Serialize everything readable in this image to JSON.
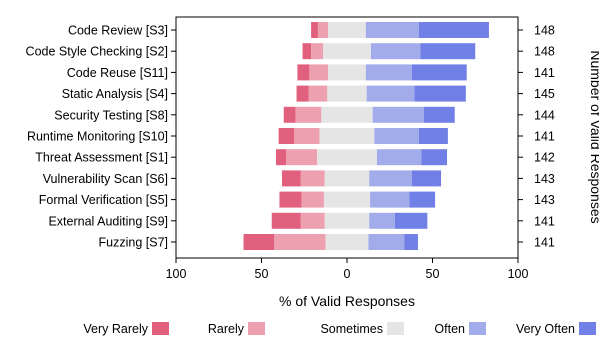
{
  "chart_data": {
    "type": "bar",
    "orientation": "horizontal",
    "stacking": "diverging",
    "categories": [
      "Code Review [S3]",
      "Code Style Checking [S2]",
      "Code Reuse [S11]",
      "Static Analysis [S4]",
      "Security Testing [S8]",
      "Runtime Monitoring [S10]",
      "Threat Assessment [S1]",
      "Vulnerability Scan [S6]",
      "Formal Verification [S5]",
      "External Auditing [S9]",
      "Fuzzing [S7]"
    ],
    "series": [
      {
        "name": "Very Rarely",
        "color": "#e0607e",
        "values": [
          4,
          5,
          7,
          7,
          7,
          9,
          6,
          11,
          13,
          17,
          18
        ]
      },
      {
        "name": "Rarely",
        "color": "#eda0b0",
        "values": [
          6,
          7,
          11,
          11,
          15,
          15,
          18,
          14,
          13,
          14,
          30
        ]
      },
      {
        "name": "Sometimes",
        "color": "#e5e5e5",
        "values": [
          22,
          28,
          22,
          23,
          30,
          32,
          35,
          26,
          27,
          26,
          25
        ]
      },
      {
        "name": "Often",
        "color": "#a3acea",
        "values": [
          31,
          29,
          27,
          28,
          30,
          26,
          26,
          25,
          23,
          15,
          21
        ]
      },
      {
        "name": "Very Often",
        "color": "#7080e6",
        "values": [
          41,
          32,
          32,
          30,
          18,
          17,
          15,
          17,
          15,
          19,
          8
        ]
      }
    ],
    "counts": [
      148,
      148,
      141,
      145,
      144,
      141,
      142,
      143,
      143,
      141,
      141
    ],
    "xlabel": "% of Valid Responses",
    "ylabel_right": "Number of Valid Responses",
    "xticks": [
      100,
      50,
      0,
      50,
      100
    ],
    "xlim": [
      -100,
      100
    ],
    "legend_position": "bottom"
  }
}
